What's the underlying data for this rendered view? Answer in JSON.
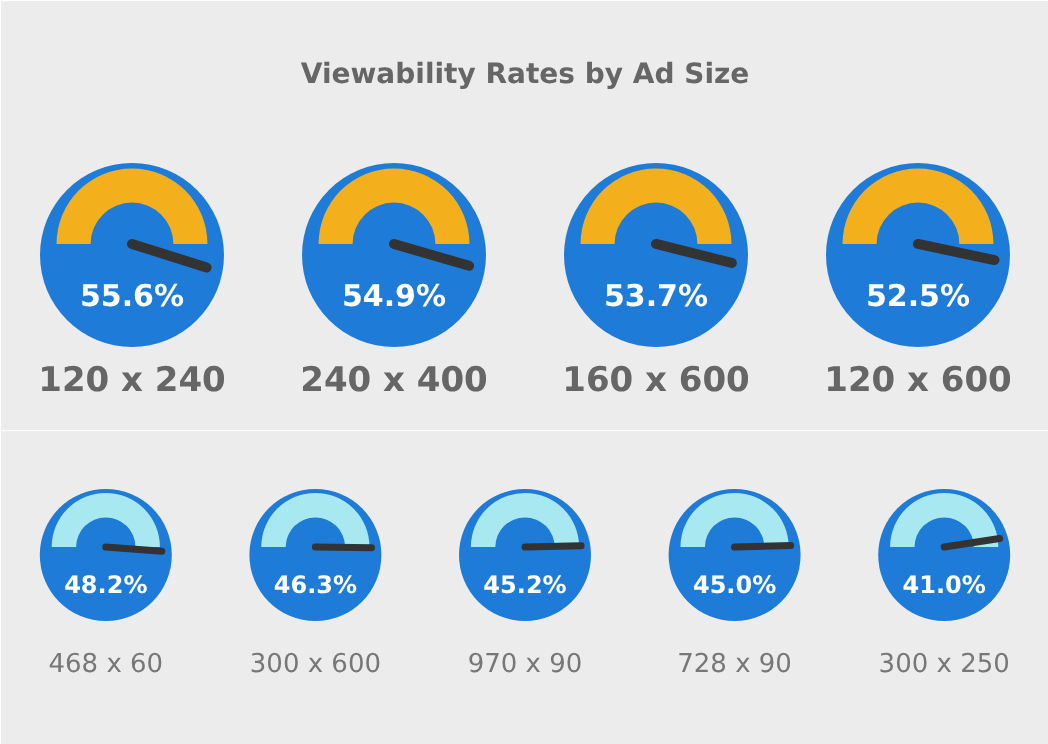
{
  "chart_data": [
    {
      "type": "other",
      "title": "Viewability Rates by Ad Size",
      "categories": [
        "120 x 240",
        "240 x 400",
        "160 x 600",
        "120 x 600"
      ],
      "values": [
        55.6,
        54.9,
        53.7,
        52.5
      ],
      "value_labels": [
        "55.6%",
        "54.9%",
        "53.7%",
        "52.5%"
      ]
    },
    {
      "type": "other",
      "categories": [
        "468 x 60",
        "300 x 600",
        "970 x 90",
        "728 x 90",
        "300 x 250"
      ],
      "values": [
        48.2,
        46.3,
        45.2,
        45.0,
        41.0
      ],
      "value_labels": [
        "48.2%",
        "46.3%",
        "45.2%",
        "45.0%",
        "41.0%"
      ]
    }
  ]
}
